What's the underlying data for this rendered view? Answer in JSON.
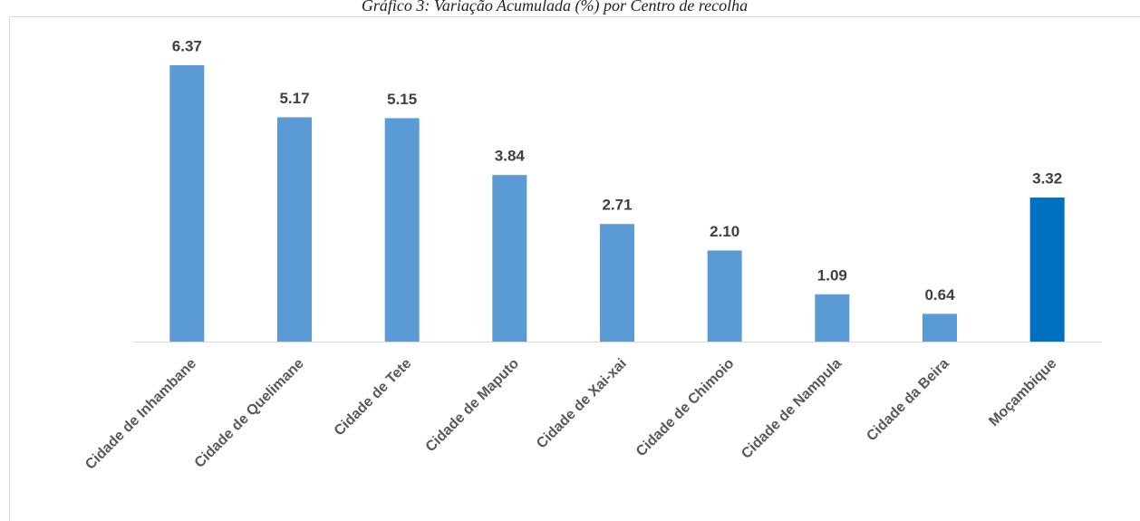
{
  "chart_data": {
    "type": "bar",
    "title": "Gráfico 3: Variação Acumulada (%) por Centro de recolha",
    "categories": [
      "Cidade de Inhambane",
      "Cidade de Quelimane",
      "Cidade de Tete",
      "Cidade de Maputo",
      "Cidade de Xai-xai",
      "Cidade de Chimoio",
      "Cidade de Nampula",
      "Cidade da Beira",
      "Moçambique"
    ],
    "values": [
      6.37,
      5.17,
      5.15,
      3.84,
      2.71,
      2.1,
      1.09,
      0.64,
      3.32
    ],
    "value_labels": [
      "6.37",
      "5.17",
      "5.15",
      "3.84",
      "2.71",
      "2.10",
      "1.09",
      "0.64",
      "3.32"
    ],
    "colors": [
      "#5b9bd5",
      "#5b9bd5",
      "#5b9bd5",
      "#5b9bd5",
      "#5b9bd5",
      "#5b9bd5",
      "#5b9bd5",
      "#5b9bd5",
      "#0070c0"
    ]
  }
}
